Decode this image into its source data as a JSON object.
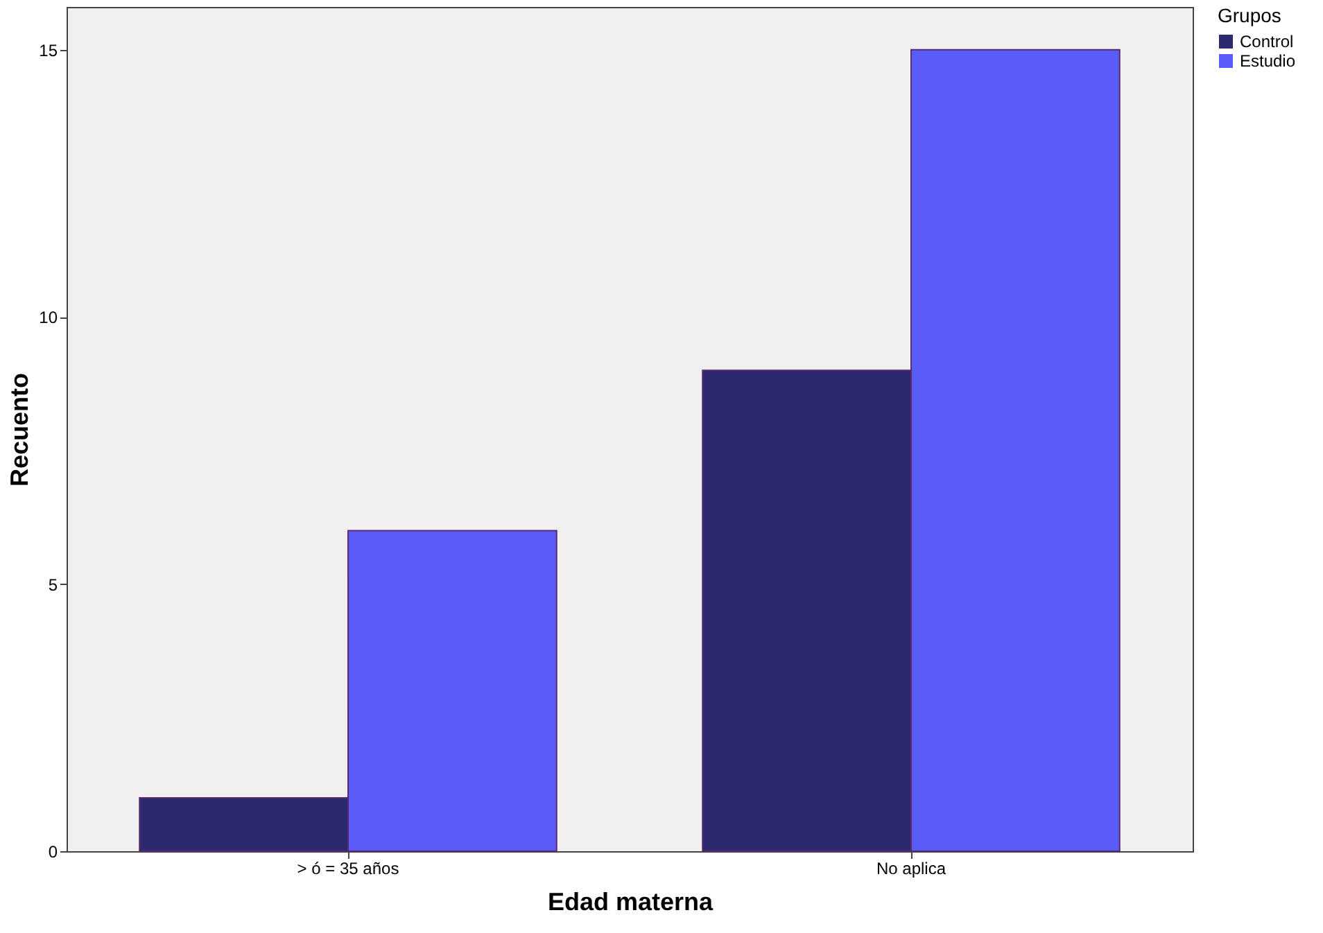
{
  "chart_data": {
    "type": "bar",
    "xlabel": "Edad materna",
    "ylabel": "Recuento",
    "legend_title": "Grupos",
    "categories": [
      "> ó = 35 años",
      "No aplica"
    ],
    "series": [
      {
        "name": "Control",
        "color": "#2b2a6e",
        "values": [
          1,
          9
        ]
      },
      {
        "name": "Estudio",
        "color": "#5a5cf8",
        "values": [
          6,
          15
        ]
      }
    ],
    "ylim": [
      0,
      15.8
    ],
    "yticks": [
      0,
      5,
      10,
      15
    ],
    "grid": false,
    "legend": "top right"
  }
}
